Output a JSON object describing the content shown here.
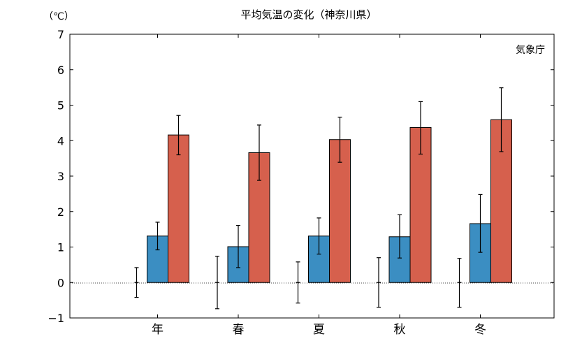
{
  "chart_data": {
    "type": "bar",
    "title": "平均気温の変化（神奈川県）",
    "unit_label": "（℃）",
    "source_label": "気象庁",
    "categories": [
      "年",
      "春",
      "夏",
      "秋",
      "冬"
    ],
    "ylim": [
      -1,
      7
    ],
    "yticks": [
      -1,
      0,
      1,
      2,
      3,
      4,
      5,
      6,
      7
    ],
    "grid": false,
    "zero_line": "dotted",
    "series": [
      {
        "kind": "errorbar",
        "color": "#000000",
        "values": [
          0,
          0,
          0,
          0,
          0
        ],
        "lower": [
          -0.42,
          -0.74,
          -0.58,
          -0.7,
          -0.7
        ],
        "upper": [
          0.42,
          0.74,
          0.58,
          0.7,
          0.68
        ]
      },
      {
        "kind": "bar",
        "color": "#3b8ec2",
        "values": [
          1.31,
          1.01,
          1.31,
          1.29,
          1.66
        ],
        "lower": [
          0.92,
          0.42,
          0.8,
          0.69,
          0.85
        ],
        "upper": [
          1.7,
          1.61,
          1.82,
          1.91,
          2.48
        ]
      },
      {
        "kind": "bar",
        "color": "#d6604d",
        "values": [
          4.16,
          3.66,
          4.03,
          4.37,
          4.59
        ],
        "lower": [
          3.6,
          2.88,
          3.39,
          3.62,
          3.69
        ],
        "upper": [
          4.71,
          4.44,
          4.66,
          5.1,
          5.49
        ]
      }
    ]
  }
}
